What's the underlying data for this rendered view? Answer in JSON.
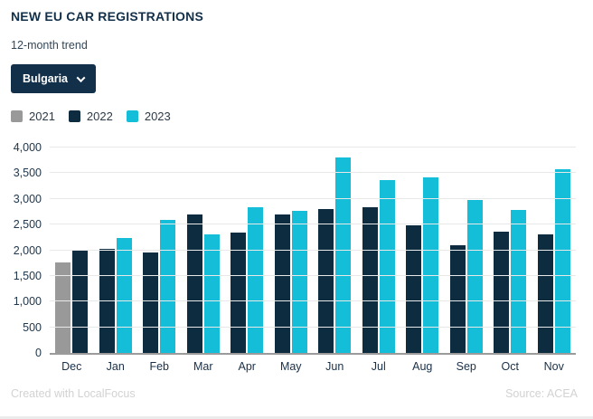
{
  "header": {
    "title": "NEW EU CAR REGISTRATIONS",
    "subtitle": "12-month trend"
  },
  "filter": {
    "selected_country": "Bulgaria"
  },
  "legend": [
    {
      "label": "2021",
      "color": "#999999"
    },
    {
      "label": "2022",
      "color": "#0e2c3f"
    },
    {
      "label": "2023",
      "color": "#15bed8"
    }
  ],
  "chart_data": {
    "type": "bar",
    "title": "NEW EU CAR REGISTRATIONS",
    "subtitle": "12-month trend",
    "categories": [
      "Dec",
      "Jan",
      "Feb",
      "Mar",
      "Apr",
      "May",
      "Jun",
      "Jul",
      "Aug",
      "Sep",
      "Oct",
      "Nov"
    ],
    "series": [
      {
        "name": "2021",
        "color": "#999999",
        "values": [
          1760,
          null,
          null,
          null,
          null,
          null,
          null,
          null,
          null,
          null,
          null,
          null
        ]
      },
      {
        "name": "2022",
        "color": "#0e2c3f",
        "values": [
          2010,
          2020,
          1950,
          2690,
          2350,
          2690,
          2810,
          2830,
          2480,
          2100,
          2370,
          2300
        ]
      },
      {
        "name": "2023",
        "color": "#15bed8",
        "values": [
          null,
          2230,
          2590,
          2310,
          2840,
          2760,
          3800,
          3370,
          3420,
          2980,
          2780,
          3570
        ]
      }
    ],
    "xlabel": "",
    "ylabel": "",
    "ylim": [
      0,
      4000
    ],
    "ytick_step": 500,
    "yticks": [
      "0",
      "500",
      "1,000",
      "1,500",
      "2,000",
      "2,500",
      "3,000",
      "3,500",
      "4,000"
    ],
    "grid": true,
    "legend_position": "top-left"
  },
  "footer": {
    "left": "Created with LocalFocus",
    "right": "Source:  ACEA"
  }
}
